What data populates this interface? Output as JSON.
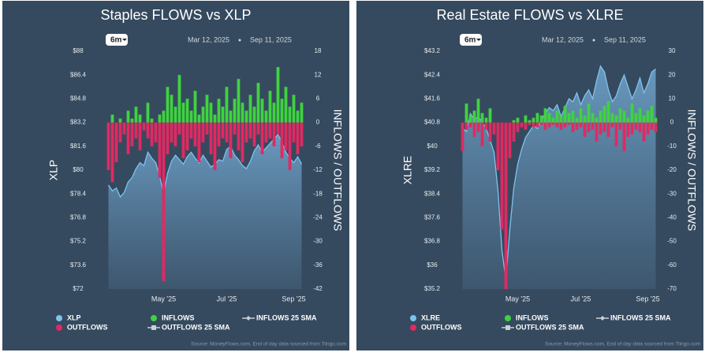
{
  "chart_data": [
    {
      "type": "area-bar",
      "title": "Staples FLOWS vs XLP",
      "button": "6m",
      "date_start": "Mar 12, 2025",
      "date_end": "Sep 11, 2025",
      "ylabel": "XLP",
      "y2label": "INFLOWS / OUTFLOWS",
      "categories": [
        null,
        null,
        null,
        null,
        null,
        null,
        null,
        null,
        null,
        null,
        null,
        null,
        null,
        null,
        "May '25",
        null,
        null,
        null,
        null,
        null,
        null,
        null,
        null,
        null,
        null,
        null,
        null,
        null,
        null,
        null,
        "Jul '25",
        null,
        null,
        null,
        null,
        null,
        null,
        null,
        null,
        null,
        null,
        null,
        null,
        null,
        null,
        null,
        null,
        "Sep '25",
        null,
        null
      ],
      "ylim": [
        72,
        88
      ],
      "yticks": [
        {
          "value": 72,
          "label": "$72"
        },
        {
          "value": 73.6,
          "label": "$73.6"
        },
        {
          "value": 75.2,
          "label": "$75.2"
        },
        {
          "value": 76.8,
          "label": "$76.8"
        },
        {
          "value": 78.4,
          "label": "$78.4"
        },
        {
          "value": 80,
          "label": "$80"
        },
        {
          "value": 81.6,
          "label": "$81.6"
        },
        {
          "value": 83.2,
          "label": "$83.2"
        },
        {
          "value": 84.8,
          "label": "$84.8"
        },
        {
          "value": 86.4,
          "label": "$86.4"
        },
        {
          "value": 88,
          "label": "$88"
        }
      ],
      "y2lim": [
        -42,
        18
      ],
      "y2ticks": [
        -42,
        -36,
        -30,
        -24,
        -18,
        -12,
        -6,
        0,
        6,
        12,
        18
      ],
      "series": [
        {
          "name": "XLP",
          "color": "#7ec3ee",
          "marker": "circle",
          "kind": "area",
          "values": [
            79,
            78.6,
            78.8,
            78.2,
            78.5,
            79.2,
            79.5,
            80.1,
            80.5,
            80.3,
            81.2,
            80.8,
            80.5,
            79.6,
            78.4,
            79.8,
            80.6,
            81,
            80.7,
            80.4,
            80.9,
            81.2,
            80.8,
            80.5,
            81,
            80.6,
            80.2,
            80.4,
            80.7,
            80.6,
            81.4,
            81.6,
            81,
            80.7,
            80.3,
            80.1,
            80.6,
            81.3,
            81.7,
            81.2,
            81.5,
            81.8,
            82.1,
            82.4,
            81.9,
            81.2,
            80.8,
            80.5,
            80.9,
            80.4
          ]
        },
        {
          "name": "INFLOWS",
          "color": "#3fd33f",
          "marker": "circle",
          "kind": "bar",
          "axis": "y2",
          "values": [
            0,
            2,
            0,
            1,
            0,
            3,
            1,
            4,
            2,
            0,
            5,
            1,
            0,
            2,
            3,
            9,
            7,
            4,
            12,
            5,
            6,
            3,
            8,
            2,
            4,
            7,
            5,
            2,
            6,
            4,
            9,
            3,
            6,
            11,
            5,
            3,
            7,
            4,
            10,
            6,
            3,
            8,
            5,
            14,
            6,
            9,
            4,
            7,
            3,
            5
          ]
        },
        {
          "name": "INFLOWS 25 SMA",
          "color": "#c8d0d8",
          "marker": "line-diamond"
        },
        {
          "name": "OUTFLOWS",
          "color": "#e02a62",
          "marker": "circle",
          "kind": "bar",
          "axis": "y2",
          "values": [
            -12,
            -15,
            -10,
            -5,
            -3,
            -8,
            -6,
            -4,
            -7,
            -2,
            -4,
            -6,
            -5,
            -14,
            -40,
            -8,
            -5,
            -6,
            -3,
            -9,
            -7,
            -4,
            -6,
            -10,
            -5,
            -3,
            -8,
            -12,
            -6,
            -4,
            -5,
            -9,
            -3,
            -7,
            -10,
            -5,
            -4,
            -6,
            -3,
            -8,
            -5,
            -4,
            -6,
            -3,
            -9,
            -7,
            -12,
            -5,
            -8,
            -6
          ]
        },
        {
          "name": "OUTFLOWS 25 SMA",
          "color": "#c8d0d8",
          "marker": "line-square"
        }
      ],
      "source": "Source: MoneyFlows.com, End of day data sourced from Tiingo.com"
    },
    {
      "type": "area-bar",
      "title": "Real Estate FLOWS vs XLRE",
      "button": "6m",
      "date_start": "Mar 12, 2025",
      "date_end": "Sep 11, 2025",
      "ylabel": "XLRE",
      "y2label": "INFLOWS / OUTFLOWS",
      "categories": [
        null,
        null,
        null,
        null,
        null,
        null,
        null,
        null,
        null,
        null,
        null,
        null,
        null,
        null,
        "May '25",
        null,
        null,
        null,
        null,
        null,
        null,
        null,
        null,
        null,
        null,
        null,
        null,
        null,
        null,
        null,
        "Jul '25",
        null,
        null,
        null,
        null,
        null,
        null,
        null,
        null,
        null,
        null,
        null,
        null,
        null,
        null,
        null,
        null,
        "Sep '25",
        null,
        null
      ],
      "ylim": [
        35.2,
        43.2
      ],
      "yticks": [
        {
          "value": 35.2,
          "label": "$35.2"
        },
        {
          "value": 36,
          "label": "$36"
        },
        {
          "value": 36.8,
          "label": "$36.8"
        },
        {
          "value": 37.6,
          "label": "$37.6"
        },
        {
          "value": 38.4,
          "label": "$38.4"
        },
        {
          "value": 39.2,
          "label": "$39.2"
        },
        {
          "value": 40,
          "label": "$40"
        },
        {
          "value": 40.8,
          "label": "$40.8"
        },
        {
          "value": 41.6,
          "label": "$41.6"
        },
        {
          "value": 42.4,
          "label": "$42.4"
        },
        {
          "value": 43.2,
          "label": "$43.2"
        }
      ],
      "y2lim": [
        -70,
        30
      ],
      "y2ticks": [
        -70,
        -60,
        -50,
        -40,
        -30,
        -20,
        -10,
        0,
        10,
        20,
        30
      ],
      "series": [
        {
          "name": "XLRE",
          "color": "#7ec3ee",
          "marker": "circle",
          "kind": "area",
          "values": [
            40.6,
            40.5,
            41.1,
            40.9,
            41,
            40.8,
            40.6,
            40.2,
            39.8,
            38.5,
            36.5,
            35.5,
            37.2,
            38.6,
            39.4,
            39.9,
            40.3,
            40.5,
            40.7,
            40.6,
            40.9,
            41.1,
            41.3,
            41.2,
            41.4,
            41,
            41.3,
            41.6,
            41.5,
            41.8,
            41.4,
            41.7,
            41.9,
            41.6,
            42.2,
            42.7,
            42.5,
            41.9,
            41.5,
            41.7,
            42.1,
            42.4,
            42,
            41.6,
            41.9,
            42.3,
            41.8,
            42.1,
            42.5,
            42.6
          ]
        },
        {
          "name": "INFLOWS",
          "color": "#3fd33f",
          "marker": "circle",
          "kind": "bar",
          "axis": "y2",
          "values": [
            0,
            8,
            3,
            5,
            10,
            4,
            2,
            6,
            0,
            0,
            0,
            0,
            0,
            1,
            2,
            0,
            3,
            1,
            2,
            4,
            3,
            6,
            4,
            2,
            5,
            3,
            7,
            4,
            5,
            2,
            6,
            3,
            8,
            4,
            2,
            5,
            7,
            9,
            4,
            3,
            6,
            5,
            2,
            8,
            4,
            6,
            3,
            5,
            7,
            2
          ]
        },
        {
          "name": "INFLOWS 25 SMA",
          "color": "#c8d0d8",
          "marker": "line-diamond"
        },
        {
          "name": "OUTFLOWS",
          "color": "#e02a62",
          "marker": "circle",
          "kind": "bar",
          "axis": "y2",
          "values": [
            -12,
            -3,
            -2,
            -6,
            -4,
            -10,
            -3,
            -8,
            -5,
            -20,
            -45,
            -70,
            -15,
            -8,
            -4,
            -2,
            -3,
            -1,
            -2,
            -2,
            -1,
            -3,
            -2,
            -1,
            -2,
            -3,
            -2,
            -1,
            -4,
            -3,
            -2,
            -6,
            -4,
            -3,
            -8,
            -5,
            -4,
            -6,
            -2,
            -10,
            -3,
            -12,
            -6,
            -5,
            -3,
            -4,
            -8,
            -5,
            -3,
            -4
          ]
        },
        {
          "name": "OUTFLOWS 25 SMA",
          "color": "#c8d0d8",
          "marker": "line-square"
        }
      ],
      "source": "Source: MoneyFlows.com, End of day data sourced from Tiingo.com"
    }
  ]
}
